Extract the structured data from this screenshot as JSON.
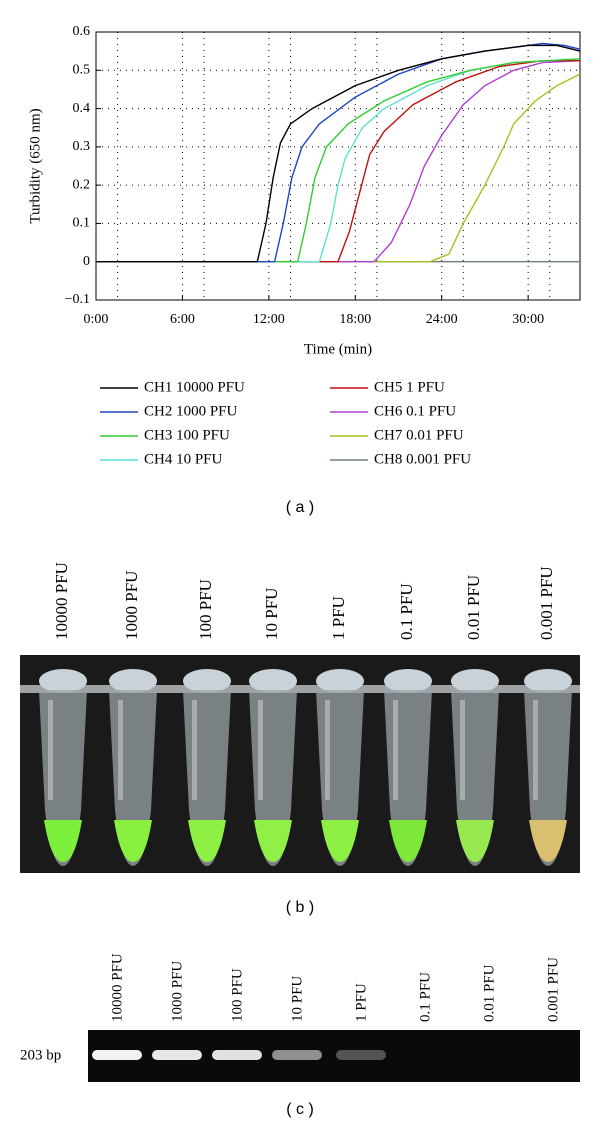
{
  "chart_data": {
    "type": "line",
    "x_label": "Time (min)",
    "y_label": "Turbidity (650 nm)",
    "xlim": [
      0,
      33.6
    ],
    "ylim": [
      -0.1,
      0.6
    ],
    "xticks": [
      {
        "value": 0,
        "label": "0:00"
      },
      {
        "value": 6,
        "label": "6:00"
      },
      {
        "value": 12,
        "label": "12:00"
      },
      {
        "value": 18,
        "label": "18:00"
      },
      {
        "value": 24,
        "label": "24:00"
      },
      {
        "value": 30,
        "label": "30:00"
      }
    ],
    "yticks": [
      {
        "value": -0.1,
        "label": "−0.1"
      },
      0,
      0.1,
      0.2,
      0.3,
      0.4,
      0.5,
      0.6
    ],
    "grid": true,
    "series": [
      {
        "name": "CH1 10000 PFU",
        "color": "#000000",
        "x": [
          0,
          11.2,
          11.8,
          12.3,
          12.8,
          13.5,
          15,
          18,
          21,
          24,
          27,
          30,
          32,
          33.6
        ],
        "values": [
          0,
          0,
          0.1,
          0.22,
          0.31,
          0.36,
          0.4,
          0.46,
          0.5,
          0.53,
          0.55,
          0.565,
          0.565,
          0.55
        ]
      },
      {
        "name": "CH2 1000 PFU",
        "color": "#2244c4",
        "x": [
          0,
          12.4,
          13,
          13.6,
          14.3,
          15.5,
          18,
          21,
          24,
          27,
          30,
          31,
          32.5,
          33.6
        ],
        "values": [
          0,
          0,
          0.1,
          0.22,
          0.3,
          0.36,
          0.43,
          0.49,
          0.53,
          0.55,
          0.565,
          0.57,
          0.565,
          0.555
        ]
      },
      {
        "name": "CH3 100 PFU",
        "color": "#33cc33",
        "x": [
          0,
          14,
          14.6,
          15.2,
          16,
          17.5,
          20,
          23,
          26,
          29,
          33.6
        ],
        "values": [
          0,
          0,
          0.1,
          0.22,
          0.3,
          0.36,
          0.42,
          0.47,
          0.5,
          0.52,
          0.53
        ]
      },
      {
        "name": "CH4 10 PFU",
        "color": "#5fe0d0",
        "x": [
          0,
          15.5,
          16.3,
          16.8,
          17.3,
          18.5,
          20,
          23,
          26,
          29,
          33.6
        ],
        "values": [
          0,
          0,
          0.1,
          0.2,
          0.27,
          0.35,
          0.4,
          0.46,
          0.5,
          0.52,
          0.53
        ]
      },
      {
        "name": "CH5 1 PFU",
        "color": "#c01010",
        "x": [
          0,
          16.8,
          17.6,
          18.3,
          19,
          20,
          22,
          25,
          28,
          31,
          33.6
        ],
        "values": [
          0,
          0,
          0.08,
          0.18,
          0.28,
          0.34,
          0.41,
          0.47,
          0.51,
          0.525,
          0.525
        ]
      },
      {
        "name": "CH6 0.1 PFU",
        "color": "#b040d0",
        "x": [
          0,
          19.3,
          20.5,
          21.8,
          22.8,
          24,
          25.5,
          27,
          29,
          31,
          33.6
        ],
        "values": [
          0,
          0,
          0.05,
          0.15,
          0.25,
          0.33,
          0.41,
          0.46,
          0.5,
          0.52,
          0.525
        ]
      },
      {
        "name": "CH7 0.01 PFU",
        "color": "#a8c020",
        "x": [
          0,
          23.2,
          24.5,
          25.5,
          27,
          28.3,
          29,
          30.5,
          32,
          33.6
        ],
        "values": [
          0,
          0,
          0.02,
          0.1,
          0.2,
          0.3,
          0.36,
          0.42,
          0.46,
          0.49
        ]
      },
      {
        "name": "CH8 0.001 PFU",
        "color": "#708080",
        "x": [
          0,
          33.6
        ],
        "values": [
          0,
          0
        ]
      }
    ]
  },
  "panel_labels": [
    "( a )",
    "( b )",
    "( c )"
  ],
  "tubes": {
    "labels": [
      "10000 PFU",
      "1000 PFU",
      "100 PFU",
      "10 PFU",
      "1 PFU",
      "0.1 PFU",
      "0.01 PFU",
      "0.001 PFU"
    ]
  },
  "gel": {
    "marker": "203 bp",
    "labels": [
      "10000 PFU",
      "1000 PFU",
      "100 PFU",
      "10 PFU",
      "1 PFU",
      "0.1 PFU",
      "0.01 PFU",
      "0.001 PFU"
    ]
  }
}
